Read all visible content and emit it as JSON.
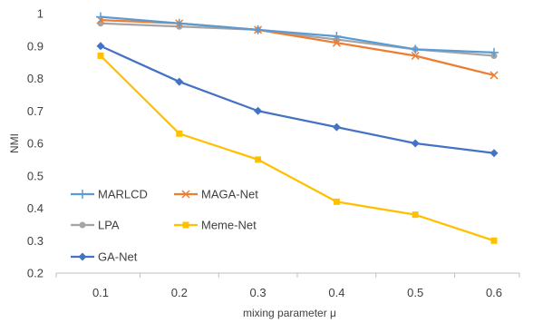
{
  "chart_data": {
    "type": "line",
    "title": "",
    "xlabel": "mixing parameter μ",
    "ylabel": "NMI",
    "x": [
      0.1,
      0.2,
      0.3,
      0.4,
      0.5,
      0.6
    ],
    "x_tick_labels": [
      "0.1",
      "0.2",
      "0.3",
      "0.4",
      "0.5",
      "0.6"
    ],
    "ylim": [
      0.2,
      1.0
    ],
    "y_ticks": [
      0.2,
      0.3,
      0.4,
      0.5,
      0.6,
      0.7,
      0.8,
      0.9,
      1.0
    ],
    "y_tick_labels": [
      "0.2",
      "0.3",
      "0.4",
      "0.5",
      "0.6",
      "0.7",
      "0.8",
      "0.9",
      "1"
    ],
    "grid": false,
    "legend_position": "bottom-left inside plot",
    "series": [
      {
        "name": "MARLCD",
        "color": "#5B9BD5",
        "marker": "plus",
        "values": [
          0.99,
          0.97,
          0.95,
          0.93,
          0.89,
          0.88
        ]
      },
      {
        "name": "MAGA-Net",
        "color": "#ED7D31",
        "marker": "cross",
        "values": [
          0.98,
          0.97,
          0.95,
          0.91,
          0.87,
          0.81
        ]
      },
      {
        "name": "LPA",
        "color": "#A5A5A5",
        "marker": "circle",
        "values": [
          0.97,
          0.96,
          0.95,
          0.92,
          0.89,
          0.87
        ]
      },
      {
        "name": "Meme-Net",
        "color": "#FFC000",
        "marker": "square",
        "values": [
          0.87,
          0.63,
          0.55,
          0.42,
          0.38,
          0.3
        ]
      },
      {
        "name": "GA-Net",
        "color": "#4472C4",
        "marker": "diamond",
        "values": [
          0.9,
          0.79,
          0.7,
          0.65,
          0.6,
          0.57
        ]
      }
    ]
  }
}
